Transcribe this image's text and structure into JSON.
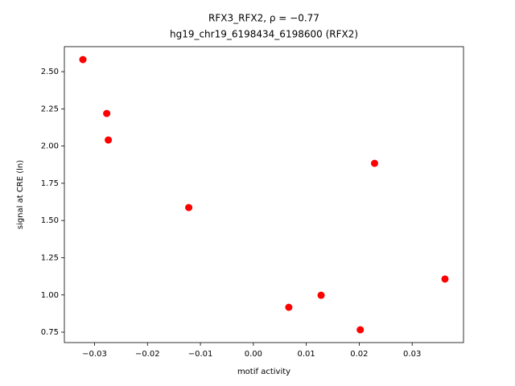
{
  "chart_data": {
    "type": "scatter",
    "title": "RFX3_RFX2, ρ = −0.77",
    "subtitle": "hg19_chr19_6198434_6198600 (RFX2)",
    "x_label": "motif activity",
    "y_label": "signal at CRE (ln)",
    "color": "#ff0000",
    "series": [
      {
        "x": [
          -0.0322,
          -0.0277,
          -0.0274,
          -0.0122,
          0.0067,
          0.0128,
          0.0202,
          0.0229,
          0.0362
        ],
        "values": [
          2.581,
          2.219,
          2.041,
          1.587,
          0.917,
          0.998,
          0.766,
          1.884,
          1.107
        ]
      }
    ],
    "xlim": [
      -0.0357,
      0.0397
    ],
    "ylim": [
      0.68,
      2.668
    ],
    "xticks": [
      {
        "value": -0.03,
        "label": "−0.03"
      },
      {
        "value": -0.02,
        "label": "−0.02"
      },
      {
        "value": -0.01,
        "label": "−0.01"
      },
      {
        "value": 0,
        "label": "0.00"
      },
      {
        "value": 0.01,
        "label": "0.01"
      },
      {
        "value": 0.02,
        "label": "0.02"
      },
      {
        "value": 0.03,
        "label": "0.03"
      }
    ],
    "yticks": [
      {
        "value": 0.75,
        "label": "0.75"
      },
      {
        "value": 1,
        "label": "1.00"
      },
      {
        "value": 1.25,
        "label": "1.25"
      },
      {
        "value": 1.5,
        "label": "1.50"
      },
      {
        "value": 1.75,
        "label": "1.75"
      },
      {
        "value": 2,
        "label": "2.00"
      },
      {
        "value": 2.25,
        "label": "2.25"
      },
      {
        "value": 2.5,
        "label": "2.50"
      }
    ]
  }
}
